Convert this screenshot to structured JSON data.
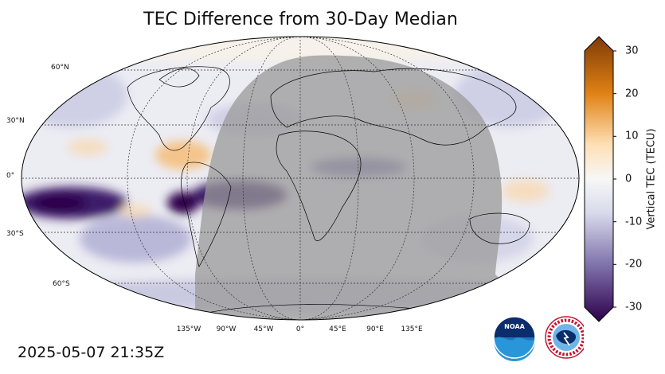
{
  "title": "TEC Difference from 30-Day Median",
  "timestamp": "2025-05-07 21:35Z",
  "colorbar": {
    "label": "Vertical TEC (TECU)",
    "min": -30,
    "max": 30,
    "ticks": [
      "30",
      "20",
      "10",
      "0",
      "-10",
      "-20",
      "-30"
    ],
    "colors": {
      "positive_max": "#7f3b08",
      "positive_mid": "#e08214",
      "positive_low": "#fee0b6",
      "zero": "#f7f7f7",
      "negative_low": "#d8daeb",
      "negative_mid": "#8073ac",
      "negative_max": "#2d004b"
    }
  },
  "map": {
    "projection": "robinson",
    "lat_labels": [
      "60°N",
      "30°N",
      "0°",
      "30°S",
      "60°S"
    ],
    "lon_labels": [
      "135°W",
      "90°W",
      "45°W",
      "0°",
      "45°E",
      "90°E",
      "135°E"
    ],
    "night_shade_color": "#9a9a9a"
  },
  "logos": [
    "noaa-logo",
    "nws-logo"
  ]
}
